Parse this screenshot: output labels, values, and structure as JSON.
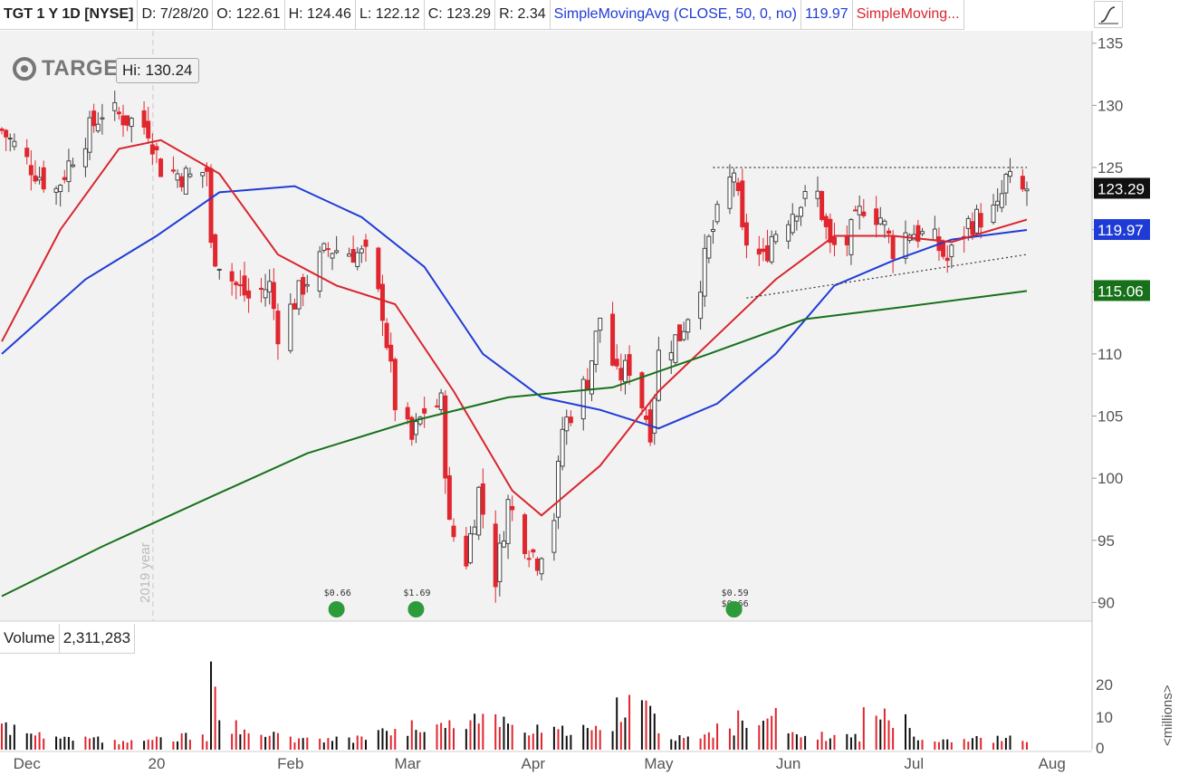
{
  "header": {
    "symbol": "TGT 1 Y 1D [NYSE]",
    "date": "D: 7/28/20",
    "open": "O: 122.61",
    "high": "H: 124.46",
    "low": "L: 122.12",
    "close": "C: 123.29",
    "range": "R: 2.34",
    "sma50_label": "SimpleMovingAvg (CLOSE, 50, 0, no)",
    "sma50_value": "119.97",
    "sma_other_label": "SimpleMoving..."
  },
  "logo_text": "TARGE",
  "hi_tooltip": "Hi: 130.24",
  "year_marker": "2019 year",
  "volume_header": {
    "label": "Volume",
    "value": "2,311,283"
  },
  "volume_unit_label": "<millions>",
  "price_tags": [
    {
      "value": "123.29",
      "color": "#111111"
    },
    {
      "value": "119.97",
      "color": "#1f3bd6"
    },
    {
      "value": "115.06",
      "color": "#17711a"
    }
  ],
  "dividend_markers": [
    {
      "label": "$0.66",
      "date": "2020-02-14"
    },
    {
      "label": "$1.69",
      "date": "2020-03-04"
    },
    {
      "label": "$0.59",
      "date": "2020-05-19"
    },
    {
      "label": "$0.66",
      "date": "2020-05-19"
    }
  ],
  "colors": {
    "up": "#444444",
    "down": "#e0262e",
    "sma_red": "#d8262e",
    "sma_blue": "#1f3bd6",
    "sma_green": "#17711a",
    "grid_bg": "#f2f2f2"
  },
  "chart_data": {
    "type": "candlestick",
    "title": "TGT 1 Y 1D [NYSE]",
    "x_range": [
      "2019-11-26",
      "2020-07-28"
    ],
    "ylim": [
      88.5,
      136
    ],
    "y_ticks": [
      90,
      95,
      100,
      105,
      110,
      115,
      120,
      125,
      130,
      135
    ],
    "x_tick_labels": [
      {
        "label": "Dec",
        "date": "2019-12-02"
      },
      {
        "label": "20",
        "date": "2020-01-02"
      },
      {
        "label": "Feb",
        "date": "2020-02-03"
      },
      {
        "label": "Mar",
        "date": "2020-03-02"
      },
      {
        "label": "Apr",
        "date": "2020-04-01"
      },
      {
        "label": "May",
        "date": "2020-05-01"
      },
      {
        "label": "Jun",
        "date": "2020-06-01"
      },
      {
        "label": "Jul",
        "date": "2020-07-01"
      },
      {
        "label": "Aug",
        "date": "2020-08-03"
      }
    ],
    "closes": [
      {
        "date": "2019-11-26",
        "close": 128
      },
      {
        "date": "2019-12-02",
        "close": 125.5
      },
      {
        "date": "2019-12-06",
        "close": 124
      },
      {
        "date": "2019-12-09",
        "close": 123.2
      },
      {
        "date": "2019-12-13",
        "close": 126
      },
      {
        "date": "2019-12-17",
        "close": 128
      },
      {
        "date": "2019-12-20",
        "close": 129.5
      },
      {
        "date": "2019-12-24",
        "close": 129.2
      },
      {
        "date": "2019-12-31",
        "close": 128.2
      },
      {
        "date": "2020-01-03",
        "close": 125
      },
      {
        "date": "2020-01-07",
        "close": 124.5
      },
      {
        "date": "2020-01-10",
        "close": 124.2
      },
      {
        "date": "2020-01-14",
        "close": 124.8
      },
      {
        "date": "2020-01-15",
        "close": 118.5
      },
      {
        "date": "2020-01-21",
        "close": 115.5
      },
      {
        "date": "2020-01-24",
        "close": 114.5
      },
      {
        "date": "2020-01-29",
        "close": 115.5
      },
      {
        "date": "2020-01-31",
        "close": 111.8
      },
      {
        "date": "2020-02-06",
        "close": 115.5
      },
      {
        "date": "2020-02-12",
        "close": 118.5
      },
      {
        "date": "2020-02-18",
        "close": 118.2
      },
      {
        "date": "2020-02-21",
        "close": 117.8
      },
      {
        "date": "2020-02-25",
        "close": 113.5
      },
      {
        "date": "2020-02-28",
        "close": 106
      },
      {
        "date": "2020-03-03",
        "close": 103
      },
      {
        "date": "2020-03-06",
        "close": 105.5
      },
      {
        "date": "2020-03-10",
        "close": 106
      },
      {
        "date": "2020-03-12",
        "close": 96
      },
      {
        "date": "2020-03-16",
        "close": 93.5
      },
      {
        "date": "2020-03-19",
        "close": 99
      },
      {
        "date": "2020-03-23",
        "close": 92
      },
      {
        "date": "2020-03-26",
        "close": 98
      },
      {
        "date": "2020-03-30",
        "close": 95
      },
      {
        "date": "2020-04-02",
        "close": 93.5
      },
      {
        "date": "2020-04-06",
        "close": 97
      },
      {
        "date": "2020-04-08",
        "close": 104
      },
      {
        "date": "2020-04-14",
        "close": 108
      },
      {
        "date": "2020-04-17",
        "close": 113
      },
      {
        "date": "2020-04-21",
        "close": 108
      },
      {
        "date": "2020-04-24",
        "close": 109
      },
      {
        "date": "2020-04-29",
        "close": 104
      },
      {
        "date": "2020-05-01",
        "close": 110
      },
      {
        "date": "2020-05-06",
        "close": 111.5
      },
      {
        "date": "2020-05-11",
        "close": 116
      },
      {
        "date": "2020-05-13",
        "close": 119
      },
      {
        "date": "2020-05-15",
        "close": 121
      },
      {
        "date": "2020-05-19",
        "close": 124.8
      },
      {
        "date": "2020-05-21",
        "close": 119.5
      },
      {
        "date": "2020-05-26",
        "close": 117.5
      },
      {
        "date": "2020-05-28",
        "close": 119.5
      },
      {
        "date": "2020-06-03",
        "close": 122
      },
      {
        "date": "2020-06-08",
        "close": 122.8
      },
      {
        "date": "2020-06-11",
        "close": 118.5
      },
      {
        "date": "2020-06-15",
        "close": 119
      },
      {
        "date": "2020-06-19",
        "close": 122
      },
      {
        "date": "2020-06-23",
        "close": 121
      },
      {
        "date": "2020-06-26",
        "close": 118.5
      },
      {
        "date": "2020-06-30",
        "close": 120
      },
      {
        "date": "2020-07-06",
        "close": 119
      },
      {
        "date": "2020-07-09",
        "close": 117.5
      },
      {
        "date": "2020-07-14",
        "close": 120.5
      },
      {
        "date": "2020-07-17",
        "close": 121
      },
      {
        "date": "2020-07-21",
        "close": 121.5
      },
      {
        "date": "2020-07-23",
        "close": 124
      },
      {
        "date": "2020-07-27",
        "close": 123
      },
      {
        "date": "2020-07-28",
        "close": 123.29
      }
    ],
    "series": [
      {
        "name": "SimpleMovingAvg (CLOSE, 50, 0, no)",
        "color": "#1f3bd6",
        "points": [
          [
            "2019-11-26",
            110
          ],
          [
            "2019-12-16",
            116
          ],
          [
            "2020-01-02",
            119.5
          ],
          [
            "2020-01-17",
            123
          ],
          [
            "2020-02-04",
            123.5
          ],
          [
            "2020-02-20",
            121
          ],
          [
            "2020-03-06",
            117
          ],
          [
            "2020-03-20",
            110
          ],
          [
            "2020-04-03",
            106.5
          ],
          [
            "2020-04-17",
            105.5
          ],
          [
            "2020-05-01",
            104
          ],
          [
            "2020-05-15",
            106
          ],
          [
            "2020-05-29",
            110
          ],
          [
            "2020-06-12",
            115.5
          ],
          [
            "2020-06-26",
            117.5
          ],
          [
            "2020-07-10",
            119.2
          ],
          [
            "2020-07-28",
            119.97
          ]
        ]
      },
      {
        "color": "#d8262e",
        "points": [
          [
            "2019-11-26",
            111
          ],
          [
            "2019-12-10",
            120
          ],
          [
            "2019-12-24",
            126.5
          ],
          [
            "2020-01-03",
            127.2
          ],
          [
            "2020-01-17",
            124.5
          ],
          [
            "2020-01-31",
            118
          ],
          [
            "2020-02-14",
            115.5
          ],
          [
            "2020-02-28",
            114
          ],
          [
            "2020-03-13",
            107
          ],
          [
            "2020-03-27",
            99
          ],
          [
            "2020-04-03",
            97
          ],
          [
            "2020-04-17",
            101
          ],
          [
            "2020-05-01",
            107
          ],
          [
            "2020-05-15",
            111.5
          ],
          [
            "2020-05-29",
            116
          ],
          [
            "2020-06-12",
            119.5
          ],
          [
            "2020-06-26",
            119.5
          ],
          [
            "2020-07-10",
            119
          ],
          [
            "2020-07-28",
            120.8
          ]
        ]
      },
      {
        "color": "#17711a",
        "points": [
          [
            "2019-11-26",
            90.5
          ],
          [
            "2019-12-20",
            94.5
          ],
          [
            "2020-01-15",
            98.5
          ],
          [
            "2020-02-07",
            102
          ],
          [
            "2020-03-02",
            104.5
          ],
          [
            "2020-03-26",
            106.5
          ],
          [
            "2020-04-20",
            107.3
          ],
          [
            "2020-05-13",
            110
          ],
          [
            "2020-06-05",
            112.8
          ],
          [
            "2020-06-29",
            113.8
          ],
          [
            "2020-07-28",
            115.06
          ]
        ]
      }
    ],
    "annotations": [
      {
        "type": "horizontal_resistance",
        "value": 125,
        "from": "2020-05-14",
        "to": "2020-07-28"
      },
      {
        "type": "rising_support",
        "from": [
          "2020-05-22",
          114.5
        ],
        "to": [
          "2020-07-28",
          118
        ]
      }
    ],
    "volume": {
      "ylabel": "<millions>",
      "y_ticks": [
        10,
        20
      ],
      "latest": "2,311,283",
      "bars_millions": [
        {
          "date": "2019-11-26",
          "v": 8
        },
        {
          "date": "2019-12-02",
          "v": 5
        },
        {
          "date": "2019-12-09",
          "v": 4
        },
        {
          "date": "2019-12-16",
          "v": 4
        },
        {
          "date": "2019-12-23",
          "v": 3
        },
        {
          "date": "2020-01-02",
          "v": 4
        },
        {
          "date": "2020-01-08",
          "v": 5
        },
        {
          "date": "2020-01-15",
          "v": 27
        },
        {
          "date": "2020-01-17",
          "v": 9
        },
        {
          "date": "2020-01-24",
          "v": 5
        },
        {
          "date": "2020-02-03",
          "v": 4
        },
        {
          "date": "2020-02-14",
          "v": 4
        },
        {
          "date": "2020-02-24",
          "v": 6
        },
        {
          "date": "2020-03-03",
          "v": 9
        },
        {
          "date": "2020-03-12",
          "v": 9
        },
        {
          "date": "2020-03-18",
          "v": 11
        },
        {
          "date": "2020-03-26",
          "v": 8
        },
        {
          "date": "2020-04-06",
          "v": 7
        },
        {
          "date": "2020-04-17",
          "v": 6
        },
        {
          "date": "2020-04-21",
          "v": 16
        },
        {
          "date": "2020-05-01",
          "v": 5
        },
        {
          "date": "2020-05-15",
          "v": 8
        },
        {
          "date": "2020-05-20",
          "v": 12
        },
        {
          "date": "2020-06-01",
          "v": 5
        },
        {
          "date": "2020-06-19",
          "v": 13
        },
        {
          "date": "2020-07-01",
          "v": 4
        },
        {
          "date": "2020-07-28",
          "v": 2.3
        }
      ]
    }
  }
}
